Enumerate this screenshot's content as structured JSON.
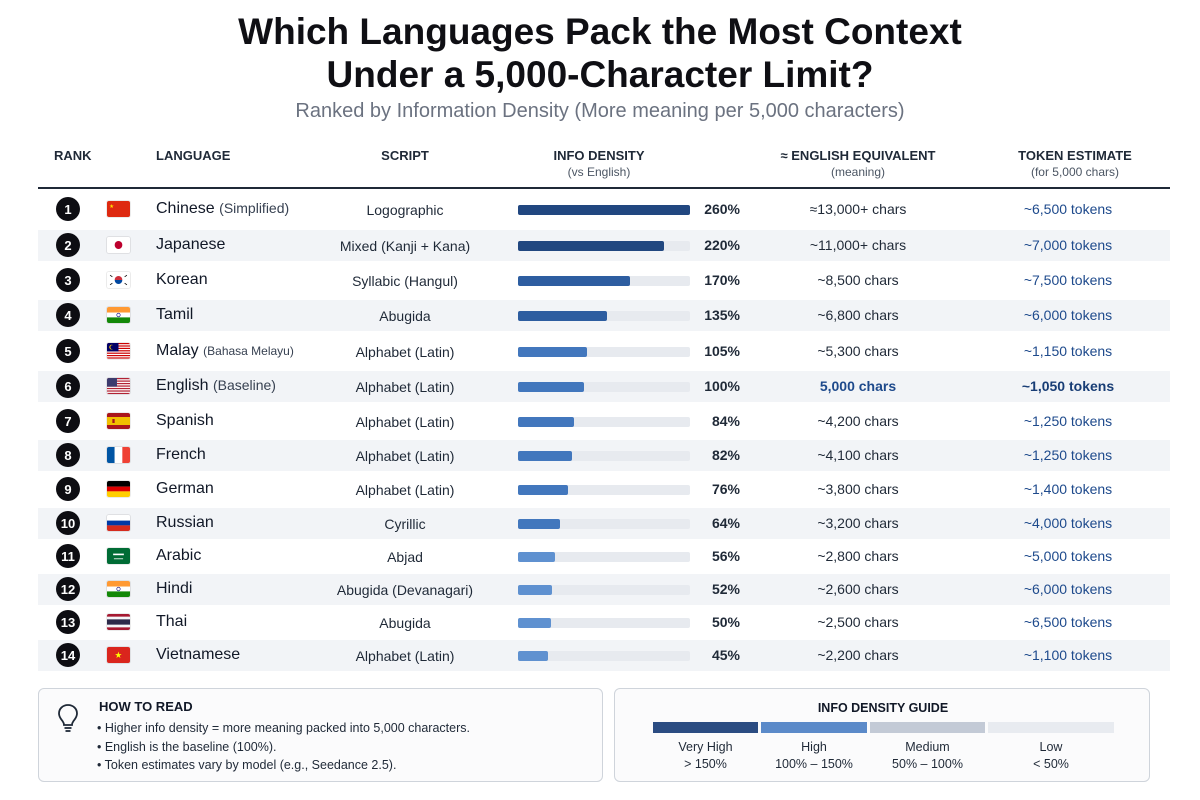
{
  "title_line1": "Which Languages Pack the Most Context",
  "title_line2": "Under a 5,000-Character Limit?",
  "subtitle": "Ranked by Information Density (More meaning per 5,000 characters)",
  "headers": {
    "rank": "RANK",
    "language": "LANGUAGE",
    "script": "SCRIPT",
    "density": "INFO DENSITY",
    "density_sub": "(vs English)",
    "equivalent": "≈ ENGLISH EQUIVALENT",
    "equivalent_sub": "(meaning)",
    "tokens": "TOKEN ESTIMATE",
    "tokens_sub": "(for 5,000 chars)"
  },
  "chart_data": {
    "type": "bar",
    "orientation": "horizontal",
    "title": "Which Languages Pack the Most Context Under a 5,000-Character Limit?",
    "subtitle": "Ranked by Information Density (More meaning per 5,000 characters)",
    "xlim": [
      0,
      260
    ],
    "unit": "%",
    "categories": [
      "Chinese",
      "Japanese",
      "Korean",
      "Tamil",
      "Malay",
      "English",
      "Spanish",
      "French",
      "German",
      "Russian",
      "Arabic",
      "Hindi",
      "Thai",
      "Vietnamese"
    ],
    "values": [
      260,
      220,
      170,
      135,
      105,
      100,
      84,
      82,
      76,
      64,
      56,
      52,
      50,
      45
    ],
    "rows": [
      {
        "rank": "1",
        "name": "Chinese",
        "note": "(Simplified)",
        "note_small": false,
        "flag": "china-flag",
        "script": "Logographic",
        "density": 260,
        "density_label": "260%",
        "equivalent": "≈13,000+ chars",
        "tokens": "~6,500 tokens",
        "baseline": false
      },
      {
        "rank": "2",
        "name": "Japanese",
        "note": "",
        "note_small": false,
        "flag": "japan-flag",
        "script": "Mixed (Kanji + Kana)",
        "density": 220,
        "density_label": "220%",
        "equivalent": "~11,000+ chars",
        "tokens": "~7,000 tokens",
        "baseline": false
      },
      {
        "rank": "3",
        "name": "Korean",
        "note": "",
        "note_small": false,
        "flag": "korea-flag",
        "script": "Syllabic (Hangul)",
        "density": 170,
        "density_label": "170%",
        "equivalent": "~8,500 chars",
        "tokens": "~7,500 tokens",
        "baseline": false
      },
      {
        "rank": "4",
        "name": "Tamil",
        "note": "",
        "note_small": false,
        "flag": "india-flag",
        "script": "Abugida",
        "density": 135,
        "density_label": "135%",
        "equivalent": "~6,800 chars",
        "tokens": "~6,000 tokens",
        "baseline": false
      },
      {
        "rank": "5",
        "name": "Malay",
        "note": "(Bahasa Melayu)",
        "note_small": true,
        "flag": "malaysia-flag",
        "script": "Alphabet (Latin)",
        "density": 105,
        "density_label": "105%",
        "equivalent": "~5,300 chars",
        "tokens": "~1,150 tokens",
        "baseline": false
      },
      {
        "rank": "6",
        "name": "English",
        "note": "(Baseline)",
        "note_small": false,
        "flag": "usa-flag",
        "script": "Alphabet (Latin)",
        "density": 100,
        "density_label": "100%",
        "equivalent": "5,000 chars",
        "tokens": "~1,050 tokens",
        "baseline": true
      },
      {
        "rank": "7",
        "name": "Spanish",
        "note": "",
        "note_small": false,
        "flag": "spain-flag",
        "script": "Alphabet (Latin)",
        "density": 84,
        "density_label": "84%",
        "equivalent": "~4,200 chars",
        "tokens": "~1,250 tokens",
        "baseline": false
      },
      {
        "rank": "8",
        "name": "French",
        "note": "",
        "note_small": false,
        "flag": "france-flag",
        "script": "Alphabet (Latin)",
        "density": 82,
        "density_label": "82%",
        "equivalent": "~4,100 chars",
        "tokens": "~1,250 tokens",
        "baseline": false
      },
      {
        "rank": "9",
        "name": "German",
        "note": "",
        "note_small": false,
        "flag": "germany-flag",
        "script": "Alphabet (Latin)",
        "density": 76,
        "density_label": "76%",
        "equivalent": "~3,800 chars",
        "tokens": "~1,400 tokens",
        "baseline": false
      },
      {
        "rank": "10",
        "name": "Russian",
        "note": "",
        "note_small": false,
        "flag": "russia-flag",
        "script": "Cyrillic",
        "density": 64,
        "density_label": "64%",
        "equivalent": "~3,200 chars",
        "tokens": "~4,000 tokens",
        "baseline": false
      },
      {
        "rank": "11",
        "name": "Arabic",
        "note": "",
        "note_small": false,
        "flag": "saudi-arabia-flag",
        "script": "Abjad",
        "density": 56,
        "density_label": "56%",
        "equivalent": "~2,800 chars",
        "tokens": "~5,000 tokens",
        "baseline": false
      },
      {
        "rank": "12",
        "name": "Hindi",
        "note": "",
        "note_small": false,
        "flag": "india-flag",
        "script": "Abugida (Devanagari)",
        "density": 52,
        "density_label": "52%",
        "equivalent": "~2,600 chars",
        "tokens": "~6,000 tokens",
        "baseline": false
      },
      {
        "rank": "13",
        "name": "Thai",
        "note": "",
        "note_small": false,
        "flag": "thailand-flag",
        "script": "Abugida",
        "density": 50,
        "density_label": "50%",
        "equivalent": "~2,500 chars",
        "tokens": "~6,500 tokens",
        "baseline": false
      },
      {
        "rank": "14",
        "name": "Vietnamese",
        "note": "",
        "note_small": false,
        "flag": "vietnam-flag",
        "script": "Alphabet (Latin)",
        "density": 45,
        "density_label": "45%",
        "equivalent": "~2,200 chars",
        "tokens": "~1,100 tokens",
        "baseline": false
      }
    ]
  },
  "how_to_read": {
    "title": "HOW TO READ",
    "icon": "lightbulb-icon",
    "items": [
      "• Higher info density = more meaning packed into 5,000 characters.",
      "• English is the baseline (100%).",
      "• Token estimates vary by model (e.g., Seedance 2.5)."
    ]
  },
  "guide": {
    "title": "INFO DENSITY GUIDE",
    "levels": [
      {
        "label": "Very High",
        "range": "> 150%",
        "color": "#2b4c82"
      },
      {
        "label": "High",
        "range": "100% – 150%",
        "color": "#5b8ac9"
      },
      {
        "label": "Medium",
        "range": "50% – 100%",
        "color": "#c3cad6"
      },
      {
        "label": "Low",
        "range": "< 50%",
        "color": "#e8ebf0"
      }
    ]
  },
  "colors": {
    "very_high": "#214780",
    "high": "#2d5da0",
    "medium": "#4277bd",
    "low": "#5f91d0",
    "baseline_text": "#1e4a8c"
  }
}
